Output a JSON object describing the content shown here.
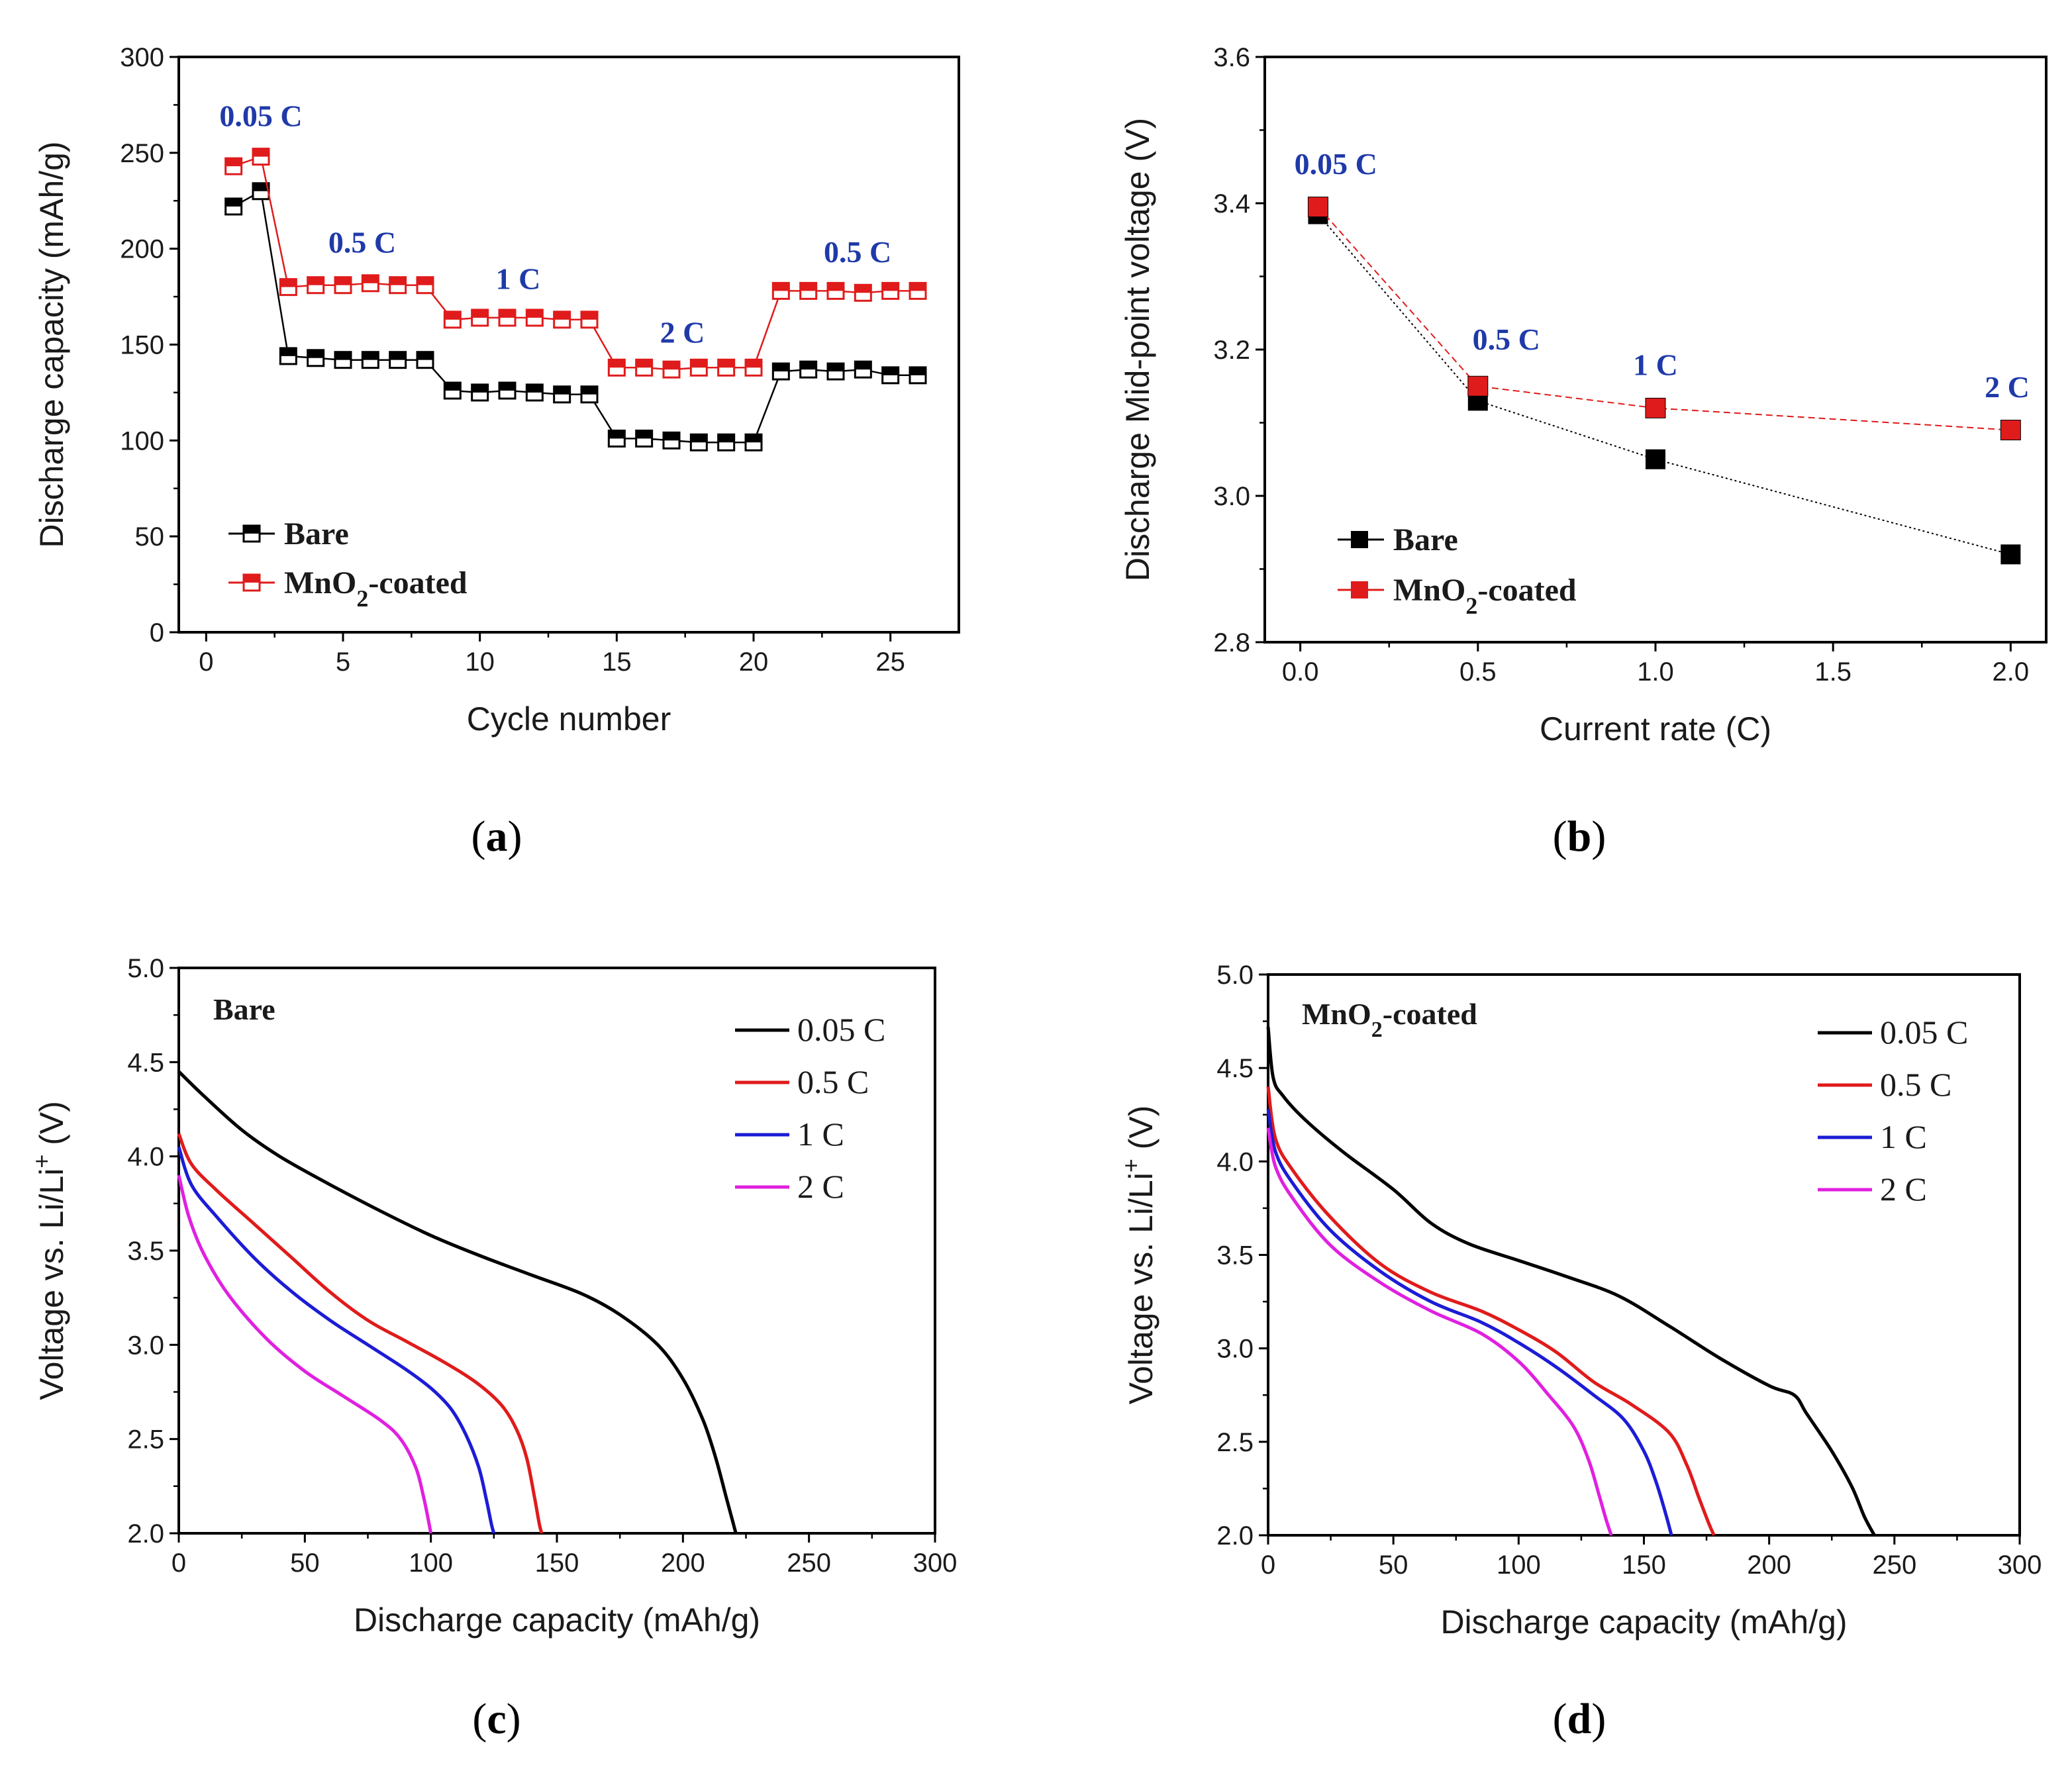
{
  "colors": {
    "black": "#000000",
    "red": "#e01b1b",
    "blue": "#1c1cd6",
    "magenta": "#e020e0",
    "annot_blue": "#1f3aa8"
  },
  "chart_data": [
    {
      "id": "a",
      "panel_label": "a",
      "type": "scatter",
      "xlabel": "Cycle  number",
      "ylabel": "Discharge capacity (mAh/g)",
      "xlim": [
        -1,
        27.5
      ],
      "ylim": [
        0,
        300
      ],
      "xticks": [
        "0",
        "5",
        "10",
        "15",
        "20",
        "25"
      ],
      "yticks": [
        "0",
        "50",
        "100",
        "150",
        "200",
        "250",
        "300"
      ],
      "series": [
        {
          "name": "Bare",
          "legend_label": "Bare",
          "color": "#000000",
          "x": [
            1,
            2,
            3,
            4,
            5,
            6,
            7,
            8,
            9,
            10,
            11,
            12,
            13,
            14,
            15,
            16,
            17,
            18,
            19,
            20,
            21,
            22,
            23,
            24,
            25,
            26
          ],
          "y": [
            222,
            230,
            144,
            143,
            142,
            142,
            142,
            142,
            126,
            125,
            126,
            125,
            124,
            124,
            101,
            101,
            100,
            99,
            99,
            99,
            136,
            137,
            136,
            137,
            134,
            134
          ]
        },
        {
          "name": "MnO2-coated",
          "legend_label": "MnO",
          "legend_sub": "2",
          "legend_suffix": "-coated",
          "color": "#e01b1b",
          "x": [
            1,
            2,
            3,
            4,
            5,
            6,
            7,
            8,
            9,
            10,
            11,
            12,
            13,
            14,
            15,
            16,
            17,
            18,
            19,
            20,
            21,
            22,
            23,
            24,
            25,
            26
          ],
          "y": [
            243,
            248,
            180,
            181,
            181,
            182,
            181,
            181,
            163,
            164,
            164,
            164,
            163,
            163,
            138,
            138,
            137,
            138,
            138,
            138,
            178,
            178,
            178,
            177,
            178,
            178
          ]
        }
      ],
      "annotations": [
        {
          "text": "0.05 C",
          "x": 2,
          "y": 264
        },
        {
          "text": "0.5 C",
          "x": 5.7,
          "y": 198
        },
        {
          "text": "1 C",
          "x": 11.4,
          "y": 179
        },
        {
          "text": "2 C",
          "x": 17.4,
          "y": 151
        },
        {
          "text": "0.5 C",
          "x": 23.8,
          "y": 193
        }
      ]
    },
    {
      "id": "b",
      "panel_label": "b",
      "type": "scatter",
      "xlabel": "Current rate (C)",
      "ylabel": "Discharge Mid-point voltage  (V)",
      "xlim": [
        -0.1,
        2.1
      ],
      "ylim": [
        2.8,
        3.6
      ],
      "xticks": [
        "0.0",
        "0.5",
        "1.0",
        "1.5",
        "2.0"
      ],
      "yticks": [
        "2.8",
        "3.0",
        "3.2",
        "3.4",
        "3.6"
      ],
      "series": [
        {
          "name": "Bare",
          "legend_label": "Bare",
          "color": "#000000",
          "x": [
            0.05,
            0.5,
            1.0,
            2.0
          ],
          "y": [
            3.385,
            3.13,
            3.05,
            2.92
          ]
        },
        {
          "name": "MnO2-coated",
          "legend_label": "MnO",
          "legend_sub": "2",
          "legend_suffix": "-coated",
          "color": "#e01b1b",
          "x": [
            0.05,
            0.5,
            1.0,
            2.0
          ],
          "y": [
            3.395,
            3.15,
            3.12,
            3.09
          ]
        }
      ],
      "annotations": [
        {
          "text": "0.05 C",
          "x": 0.1,
          "y": 3.44
        },
        {
          "text": "0.5 C",
          "x": 0.58,
          "y": 3.2
        },
        {
          "text": "1 C",
          "x": 1.0,
          "y": 3.165
        },
        {
          "text": "2 C",
          "x": 1.99,
          "y": 3.135
        }
      ]
    },
    {
      "id": "c",
      "panel_label": "c",
      "type": "line",
      "title": "Bare",
      "xlabel": "Discharge capacity (mAh/g)",
      "ylabel": "Voltage vs. Li/Li",
      "ylabel_sup": "+",
      "ylabel_unit": " (V)",
      "xlim": [
        0,
        300
      ],
      "ylim": [
        2.0,
        5.0
      ],
      "xticks": [
        "0",
        "50",
        "100",
        "150",
        "200",
        "250",
        "300"
      ],
      "yticks": [
        "2.0",
        "2.5",
        "3.0",
        "3.5",
        "4.0",
        "4.5",
        "5.0"
      ],
      "series": [
        {
          "name": "0.05 C",
          "color": "#000000",
          "x": [
            0,
            10,
            25,
            40,
            60,
            80,
            100,
            120,
            140,
            160,
            175,
            190,
            200,
            208,
            213,
            217,
            220,
            221
          ],
          "y": [
            4.45,
            4.32,
            4.14,
            4.0,
            3.85,
            3.71,
            3.58,
            3.47,
            3.37,
            3.27,
            3.16,
            3.0,
            2.82,
            2.6,
            2.4,
            2.2,
            2.05,
            2.0
          ]
        },
        {
          "name": "0.5 C",
          "color": "#e01b1b",
          "x": [
            0,
            5,
            15,
            30,
            45,
            60,
            75,
            90,
            105,
            118,
            128,
            134,
            138,
            141,
            143,
            144
          ],
          "y": [
            4.12,
            3.96,
            3.82,
            3.64,
            3.46,
            3.28,
            3.13,
            3.02,
            2.91,
            2.8,
            2.68,
            2.55,
            2.4,
            2.2,
            2.05,
            2.0
          ]
        },
        {
          "name": "1 C",
          "color": "#1c1cd6",
          "x": [
            0,
            5,
            15,
            30,
            45,
            60,
            75,
            90,
            100,
            108,
            114,
            119,
            122,
            124,
            125
          ],
          "y": [
            4.05,
            3.85,
            3.68,
            3.46,
            3.28,
            3.13,
            3.0,
            2.87,
            2.77,
            2.66,
            2.52,
            2.35,
            2.18,
            2.05,
            2.0
          ]
        },
        {
          "name": "2 C",
          "color": "#e020e0",
          "x": [
            0,
            4,
            10,
            20,
            35,
            50,
            65,
            80,
            88,
            94,
            97,
            99,
            100
          ],
          "y": [
            3.9,
            3.68,
            3.48,
            3.26,
            3.03,
            2.86,
            2.73,
            2.6,
            2.5,
            2.35,
            2.2,
            2.07,
            2.0
          ]
        }
      ]
    },
    {
      "id": "d",
      "panel_label": "d",
      "type": "line",
      "title": "MnO",
      "title_sub": "2",
      "title_suffix": "-coated",
      "xlabel": "Discharge capacity (mAh/g)",
      "ylabel": "Voltage vs. Li/Li",
      "ylabel_sup": "+",
      "ylabel_unit": " (V)",
      "xlim": [
        0,
        300
      ],
      "ylim": [
        2.0,
        5.0
      ],
      "xticks": [
        "0",
        "50",
        "100",
        "150",
        "200",
        "250",
        "300"
      ],
      "yticks": [
        "2.0",
        "2.5",
        "3.0",
        "3.5",
        "4.0",
        "4.5",
        "5.0"
      ],
      "series": [
        {
          "name": "0.05 C",
          "color": "#000000",
          "x": [
            0,
            2,
            6,
            15,
            30,
            50,
            65,
            80,
            100,
            120,
            140,
            160,
            180,
            200,
            210,
            215,
            225,
            233,
            238,
            242
          ],
          "y": [
            4.72,
            4.45,
            4.35,
            4.22,
            4.05,
            3.85,
            3.67,
            3.56,
            3.47,
            3.38,
            3.28,
            3.12,
            2.95,
            2.8,
            2.75,
            2.65,
            2.45,
            2.26,
            2.1,
            2.0
          ]
        },
        {
          "name": "0.5 C",
          "color": "#e01b1b",
          "x": [
            0,
            3,
            10,
            25,
            45,
            65,
            85,
            100,
            115,
            130,
            145,
            160,
            167,
            172,
            176,
            178
          ],
          "y": [
            4.4,
            4.12,
            3.95,
            3.7,
            3.45,
            3.3,
            3.2,
            3.1,
            2.98,
            2.82,
            2.7,
            2.55,
            2.38,
            2.2,
            2.06,
            2.0
          ]
        },
        {
          "name": "1 C",
          "color": "#1c1cd6",
          "x": [
            0,
            3,
            10,
            25,
            45,
            65,
            85,
            100,
            115,
            130,
            142,
            150,
            155,
            159,
            161
          ],
          "y": [
            4.28,
            4.05,
            3.88,
            3.63,
            3.41,
            3.25,
            3.14,
            3.03,
            2.9,
            2.75,
            2.62,
            2.45,
            2.28,
            2.1,
            2.0
          ]
        },
        {
          "name": "2 C",
          "color": "#e020e0",
          "x": [
            0,
            3,
            10,
            25,
            45,
            65,
            85,
            100,
            112,
            122,
            128,
            132,
            135,
            137
          ],
          "y": [
            4.18,
            3.97,
            3.8,
            3.55,
            3.35,
            3.2,
            3.08,
            2.93,
            2.75,
            2.58,
            2.4,
            2.22,
            2.08,
            2.0
          ]
        }
      ]
    }
  ]
}
